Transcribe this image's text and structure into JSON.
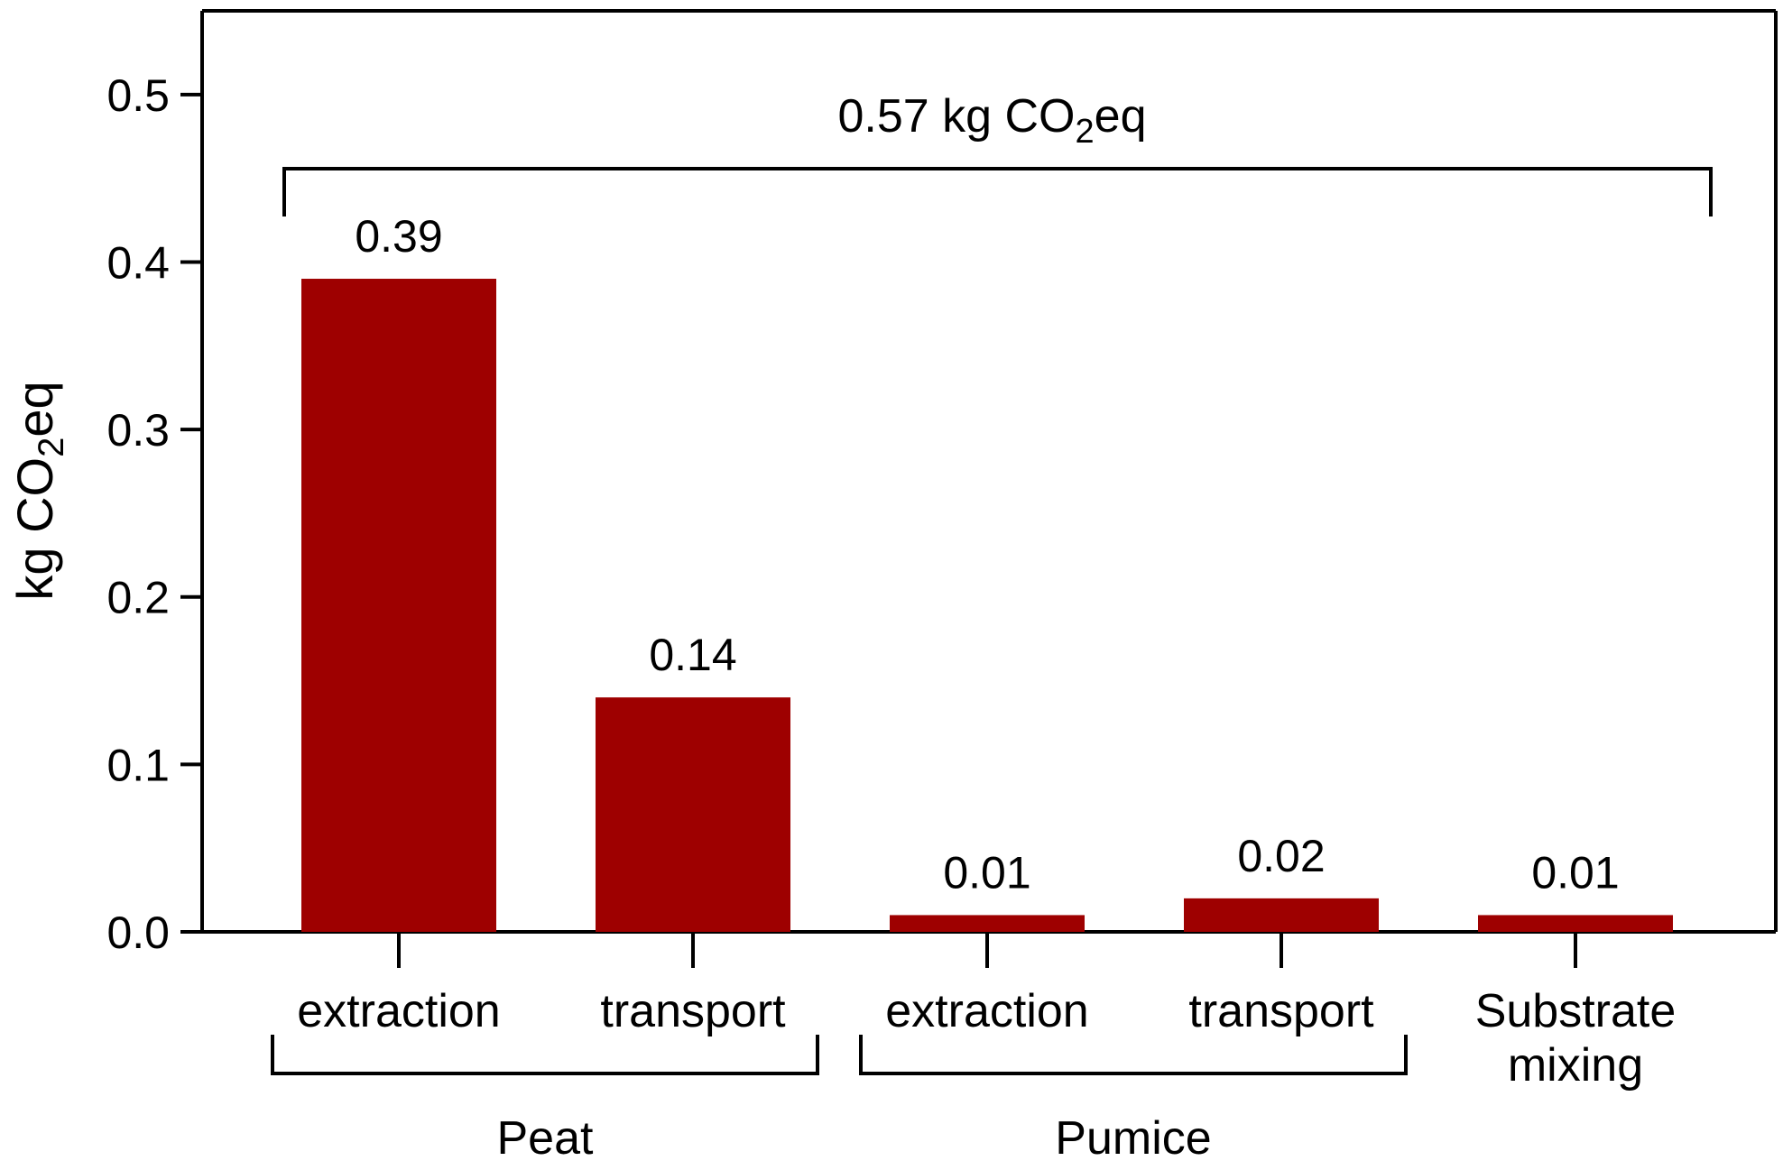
{
  "chart_data": {
    "type": "bar",
    "title": "",
    "xlabel": "",
    "ylabel": "kg CO2eq",
    "ylabel_parts": {
      "main": "kg CO",
      "sub": "2",
      "suffix": "eq"
    },
    "ylim": [
      0,
      0.55
    ],
    "yticks": [
      0.0,
      0.1,
      0.2,
      0.3,
      0.4,
      0.5
    ],
    "ytick_labels": [
      "0.0",
      "0.1",
      "0.2",
      "0.3",
      "0.4",
      "0.5"
    ],
    "categories": [
      "extraction",
      "transport",
      "extraction",
      "transport",
      "Substrate mixing"
    ],
    "category_lines": [
      [
        "extraction"
      ],
      [
        "transport"
      ],
      [
        "extraction"
      ],
      [
        "transport"
      ],
      [
        "Substrate",
        "mixing"
      ]
    ],
    "values": [
      0.39,
      0.14,
      0.01,
      0.02,
      0.01
    ],
    "value_labels": [
      "0.39",
      "0.14",
      "0.01",
      "0.02",
      "0.01"
    ],
    "bar_color": "#9e0000",
    "groups": [
      {
        "label": "Peat",
        "members": [
          0,
          1
        ]
      },
      {
        "label": "Pumice",
        "members": [
          2,
          3
        ]
      }
    ],
    "total_annotation": {
      "label": "0.57 kg CO2eq",
      "parts": {
        "main": "0.57 kg CO",
        "sub": "2",
        "suffix": "eq"
      },
      "value": 0.57
    }
  }
}
